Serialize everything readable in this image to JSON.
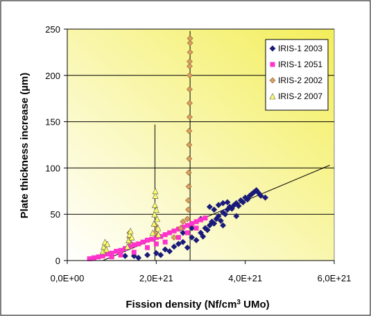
{
  "chart_data": {
    "type": "scatter",
    "title": "",
    "xlabel": "Fission density (Nf/cm",
    "xlabel_sup": "3",
    "xlabel_tail": " UMo)",
    "ylabel": "Plate thickness increase (",
    "ylabel_mu": "µ",
    "ylabel_tail": "m)",
    "xlim": [
      0,
      6e+21
    ],
    "ylim": [
      0,
      250
    ],
    "x_ticks": [
      0,
      2e+21,
      4e+21,
      6e+21
    ],
    "x_tick_labels": [
      "0,0E+00",
      "2,0E+21",
      "4,0E+21",
      "6,0E+21"
    ],
    "y_ticks": [
      0,
      50,
      100,
      150,
      200,
      250
    ],
    "y_tick_labels": [
      "0",
      "50",
      "100",
      "150",
      "200",
      "250"
    ],
    "grid": "horizontal",
    "legend_position": "top-right",
    "colors": {
      "plot_bg_start": "#ffffff",
      "plot_bg_end": "#f3ee5a",
      "iris1_2003": "#1a1a7a",
      "iris1_2051": "#ff33cc",
      "iris2_2002": "#d9a066",
      "iris2_2007": "#ffff66"
    },
    "series": [
      {
        "name": "IRIS-1 2003",
        "marker": "diamond",
        "color": "#1a1a7a",
        "points": [
          [
            1.3e+21,
            5
          ],
          [
            1.5e+21,
            5
          ],
          [
            1.6e+21,
            3
          ],
          [
            1.8e+21,
            6
          ],
          [
            2e+21,
            8
          ],
          [
            2.1e+21,
            6
          ],
          [
            2.2e+21,
            12
          ],
          [
            2.3e+21,
            10
          ],
          [
            2.4e+21,
            15
          ],
          [
            2.5e+21,
            18
          ],
          [
            2.6e+21,
            20
          ],
          [
            2.7e+21,
            14
          ],
          [
            2.8e+21,
            25
          ],
          [
            2.9e+21,
            22
          ],
          [
            3e+21,
            30
          ],
          [
            3.05e+21,
            26
          ],
          [
            3.1e+21,
            35
          ],
          [
            3.15e+21,
            33
          ],
          [
            3.2e+21,
            38
          ],
          [
            3.25e+21,
            42
          ],
          [
            3.3e+21,
            40
          ],
          [
            3.35e+21,
            45
          ],
          [
            3.4e+21,
            48
          ],
          [
            3.45e+21,
            43
          ],
          [
            3.5e+21,
            52
          ],
          [
            3.55e+21,
            50
          ],
          [
            3.6e+21,
            55
          ],
          [
            3.65e+21,
            58
          ],
          [
            3.7e+21,
            56
          ],
          [
            3.75e+21,
            60
          ],
          [
            3.8e+21,
            62
          ],
          [
            3.85e+21,
            59
          ],
          [
            3.9e+21,
            65
          ],
          [
            3.95e+21,
            63
          ],
          [
            4e+21,
            68
          ],
          [
            4.05e+21,
            66
          ],
          [
            4.1e+21,
            70
          ],
          [
            4.15e+21,
            72
          ],
          [
            4.2e+21,
            74
          ],
          [
            4.25e+21,
            76
          ],
          [
            4.3e+21,
            73
          ],
          [
            4.35e+21,
            70
          ],
          [
            4.45e+21,
            68
          ],
          [
            3.2e+21,
            58
          ],
          [
            3.4e+21,
            60
          ],
          [
            3.5e+21,
            62
          ],
          [
            3.6e+21,
            63
          ],
          [
            3.3e+21,
            55
          ],
          [
            3.5e+21,
            38
          ],
          [
            3.8e+21,
            48
          ],
          [
            2.6e+21,
            30
          ],
          [
            2.8e+21,
            35
          ],
          [
            3e+21,
            45
          ]
        ]
      },
      {
        "name": "IRIS-1 2051",
        "marker": "square",
        "color": "#ff33cc",
        "points": [
          [
            5e+20,
            2
          ],
          [
            6e+20,
            3
          ],
          [
            7e+20,
            4
          ],
          [
            8e+20,
            5
          ],
          [
            9e+20,
            7
          ],
          [
            1e+21,
            8
          ],
          [
            1.1e+21,
            10
          ],
          [
            1.2e+21,
            11
          ],
          [
            1.3e+21,
            13
          ],
          [
            1.4e+21,
            15
          ],
          [
            1.5e+21,
            17
          ],
          [
            1.6e+21,
            18
          ],
          [
            1.7e+21,
            20
          ],
          [
            1.8e+21,
            22
          ],
          [
            1.9e+21,
            23
          ],
          [
            2e+21,
            25
          ],
          [
            2.1e+21,
            26
          ],
          [
            2.2e+21,
            28
          ],
          [
            2.3e+21,
            30
          ],
          [
            2.4e+21,
            32
          ],
          [
            2.5e+21,
            34
          ],
          [
            2.6e+21,
            36
          ],
          [
            2.7e+21,
            38
          ],
          [
            2.8e+21,
            40
          ],
          [
            2.9e+21,
            42
          ],
          [
            3e+21,
            44
          ],
          [
            3.1e+21,
            46
          ],
          [
            1e+21,
            4
          ],
          [
            1.2e+21,
            6
          ],
          [
            1.5e+21,
            9
          ],
          [
            1.8e+21,
            14
          ],
          [
            2e+21,
            18
          ],
          [
            2.2e+21,
            20
          ],
          [
            2.5e+21,
            25
          ],
          [
            2.7e+21,
            30
          ],
          [
            2.9e+21,
            35
          ]
        ]
      },
      {
        "name": "IRIS-2 2002",
        "marker": "diamond",
        "color": "#d9a066",
        "points": [
          [
            1.4e+21,
            20
          ],
          [
            1.4e+21,
            25
          ],
          [
            1.4e+21,
            30
          ],
          [
            1.98e+21,
            30
          ],
          [
            1.98e+21,
            38
          ],
          [
            2.4e+21,
            25
          ],
          [
            2.55e+21,
            35
          ],
          [
            2.6e+21,
            42
          ],
          [
            2.7e+21,
            45
          ],
          [
            2.72e+21,
            55
          ],
          [
            2.72e+21,
            65
          ],
          [
            2.73e+21,
            80
          ],
          [
            2.73e+21,
            95
          ],
          [
            2.74e+21,
            110
          ],
          [
            2.74e+21,
            125
          ],
          [
            2.74e+21,
            140
          ],
          [
            2.75e+21,
            155
          ],
          [
            2.75e+21,
            170
          ],
          [
            2.75e+21,
            185
          ],
          [
            2.75e+21,
            200
          ],
          [
            2.75e+21,
            210
          ],
          [
            2.75e+21,
            215
          ],
          [
            2.76e+21,
            225
          ],
          [
            2.76e+21,
            235
          ],
          [
            2.76e+21,
            240
          ]
        ]
      },
      {
        "name": "IRIS-2 2007",
        "marker": "triangle",
        "color": "#ffff66",
        "points": [
          [
            8e+20,
            10
          ],
          [
            8.2e+20,
            15
          ],
          [
            8.5e+20,
            20
          ],
          [
            8.8e+20,
            12
          ],
          [
            9e+20,
            18
          ],
          [
            1.35e+21,
            15
          ],
          [
            1.38e+21,
            22
          ],
          [
            1.4e+21,
            28
          ],
          [
            1.42e+21,
            32
          ],
          [
            1.45e+21,
            25
          ],
          [
            1.92e+21,
            30
          ],
          [
            1.95e+21,
            40
          ],
          [
            1.96e+21,
            50
          ],
          [
            1.97e+21,
            60
          ],
          [
            1.98e+21,
            70
          ],
          [
            1.98e+21,
            75
          ],
          [
            2e+21,
            55
          ],
          [
            2.02e+21,
            45
          ],
          [
            2.04e+21,
            35
          ],
          [
            2.05e+21,
            28
          ]
        ]
      }
    ],
    "fit_lines": [
      {
        "from": [
          8e+20,
          0
        ],
        "to": [
          5.9e+21,
          103
        ]
      },
      {
        "from": [
          1.97e+21,
          0
        ],
        "to": [
          1.97e+21,
          147
        ]
      },
      {
        "from": [
          2.76e+21,
          0
        ],
        "to": [
          2.76e+21,
          248
        ]
      }
    ]
  }
}
